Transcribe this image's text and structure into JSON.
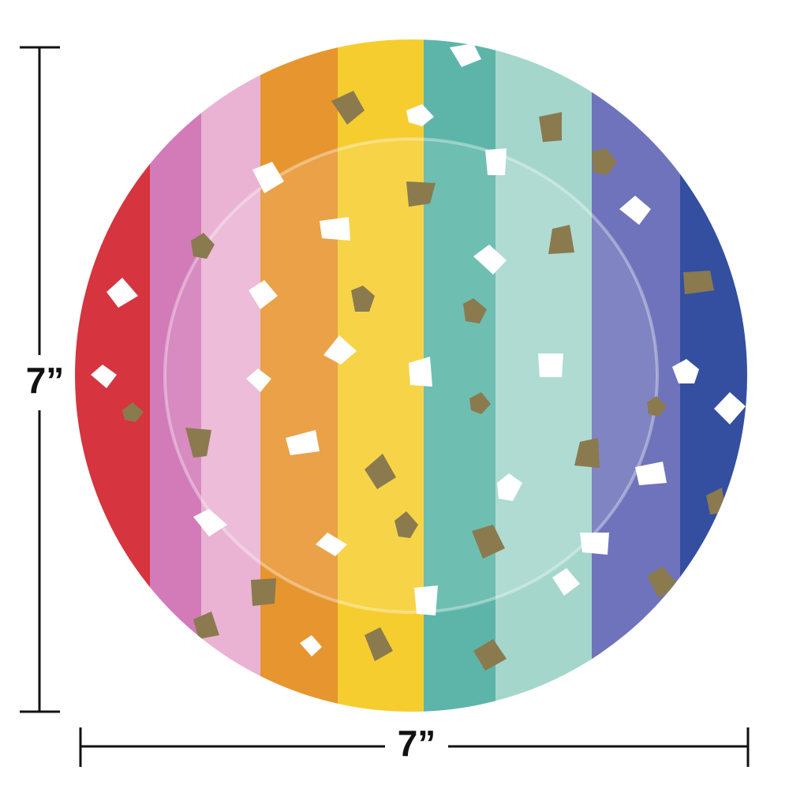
{
  "dimensions": {
    "height_label": "7”",
    "width_label": "7”"
  }
}
